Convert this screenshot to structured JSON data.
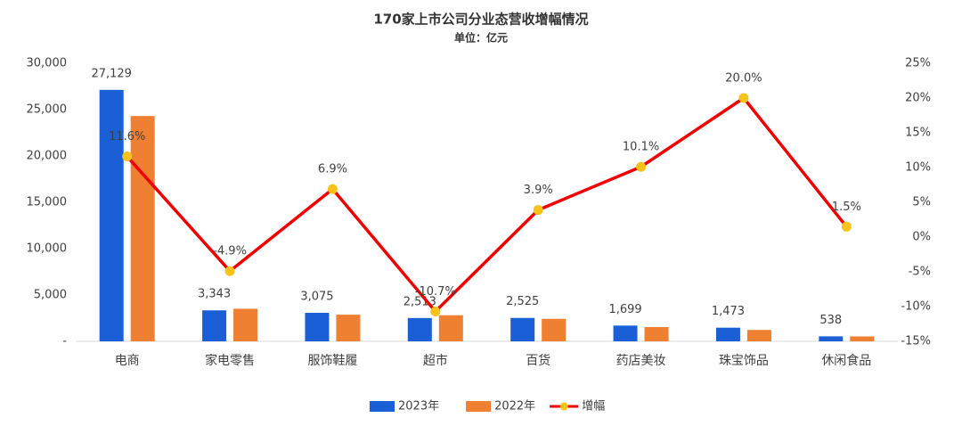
{
  "chart_data": {
    "type": "bar-line",
    "title": "170家上市公司分业态营收增幅情况",
    "subtitle": "单位：亿元",
    "categories": [
      "电商",
      "家电零售",
      "服饰鞋履",
      "超市",
      "百货",
      "药店美妆",
      "珠宝饰品",
      "休闲食品"
    ],
    "series": [
      {
        "name": "2023年",
        "type": "bar",
        "color": "#1a5fd6",
        "values": [
          27129,
          3343,
          3075,
          2513,
          2525,
          1699,
          1473,
          538
        ],
        "value_labels": [
          "27,129",
          "3,343",
          "3,075",
          "2,513",
          "2,525",
          "1,699",
          "1,473",
          "538"
        ]
      },
      {
        "name": "2022年",
        "type": "bar",
        "color": "#ef7f31",
        "values": [
          24310,
          3515,
          2877,
          2814,
          2430,
          1543,
          1228,
          530
        ]
      },
      {
        "name": "增幅",
        "type": "line",
        "axis": "y2",
        "color": "#f20000",
        "marker_color": "#f7c21a",
        "values": [
          11.6,
          -4.9,
          6.9,
          -10.7,
          3.9,
          10.1,
          20.0,
          1.5
        ],
        "value_labels": [
          "11.6%",
          "-4.9%",
          "6.9%",
          "-10.7%",
          "3.9%",
          "10.1%",
          "20.0%",
          "1.5%"
        ]
      }
    ],
    "ylim": [
      0,
      30000
    ],
    "yticks": [
      {
        "value": 0,
        "label": "-"
      },
      {
        "value": 5000,
        "label": "5,000"
      },
      {
        "value": 10000,
        "label": "10,000"
      },
      {
        "value": 15000,
        "label": "15,000"
      },
      {
        "value": 20000,
        "label": "20,000"
      },
      {
        "value": 25000,
        "label": "25,000"
      },
      {
        "value": 30000,
        "label": "30,000"
      }
    ],
    "y2lim": [
      -15,
      25
    ],
    "y2ticks": [
      {
        "value": -15,
        "label": "-15%"
      },
      {
        "value": -10,
        "label": "-10%"
      },
      {
        "value": -5,
        "label": "-5%"
      },
      {
        "value": 0,
        "label": "0%"
      },
      {
        "value": 5,
        "label": "5%"
      },
      {
        "value": 10,
        "label": "10%"
      },
      {
        "value": 15,
        "label": "15%"
      },
      {
        "value": 20,
        "label": "20%"
      },
      {
        "value": 25,
        "label": "25%"
      }
    ],
    "grid": false,
    "legend": "bottom"
  }
}
